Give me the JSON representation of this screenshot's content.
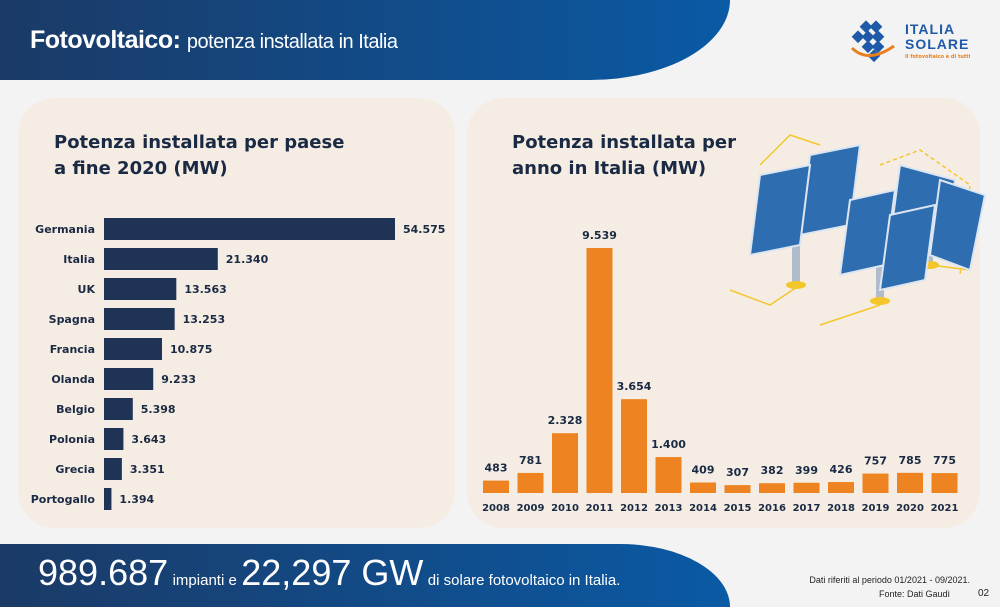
{
  "header": {
    "title_bold": "Fotovoltaico:",
    "title_rest": "potenza installata in Italia"
  },
  "logo": {
    "line1": "ITALIA",
    "line2": "SOLARE",
    "tagline": "Il fotovoltaico è di tutti"
  },
  "footer": {
    "num1": "989.687",
    "txt1": "impianti e",
    "num2": "22,297 GW",
    "txt2": "di solare fotovoltaico in Italia.",
    "note1": "Dati riferiti al periodo 01/2021 - 09/2021.",
    "note2": "Fonte: Dati Gaudì",
    "page": "02"
  },
  "colors": {
    "navy": "#1f3356",
    "orange": "#ee8421",
    "panel": "#f5ede3"
  },
  "chart_data": [
    {
      "type": "bar",
      "orientation": "horizontal",
      "title": "Potenza installata per paese a fine 2020 (MW)",
      "title_lines": [
        "Potenza installata per paese",
        "a fine 2020 (MW)"
      ],
      "categories": [
        "Germania",
        "Italia",
        "UK",
        "Spagna",
        "Francia",
        "Olanda",
        "Belgio",
        "Polonia",
        "Grecia",
        "Portogallo"
      ],
      "values": [
        54575,
        21340,
        13563,
        13253,
        10875,
        9233,
        5398,
        3643,
        3351,
        1394
      ],
      "labels": [
        "54.575",
        "21.340",
        "13.563",
        "13.253",
        "10.875",
        "9.233",
        "5.398",
        "3.643",
        "3.351",
        "1.394"
      ]
    },
    {
      "type": "bar",
      "title": "Potenza installata per anno in Italia (MW)",
      "title_lines": [
        "Potenza installata per",
        "anno in Italia (MW)"
      ],
      "categories": [
        "2008",
        "2009",
        "2010",
        "2011",
        "2012",
        "2013",
        "2014",
        "2015",
        "2016",
        "2017",
        "2018",
        "2019",
        "2020",
        "2021"
      ],
      "values": [
        483,
        781,
        2328,
        9539,
        3654,
        1400,
        409,
        307,
        382,
        399,
        426,
        757,
        785,
        775
      ],
      "labels": [
        "483",
        "781",
        "2.328",
        "9.539",
        "3.654",
        "1.400",
        "409",
        "307",
        "382",
        "399",
        "426",
        "757",
        "785",
        "775"
      ]
    }
  ]
}
